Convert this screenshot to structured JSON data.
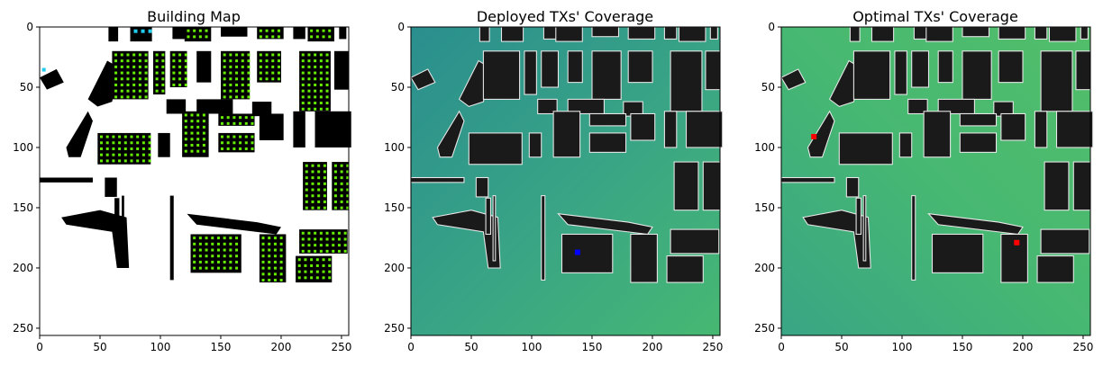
{
  "chart_data": [
    {
      "type": "heatmap",
      "title": "Building Map",
      "xlabel": "",
      "ylabel": "",
      "xlim": [
        0,
        256
      ],
      "ylim": [
        256,
        0
      ],
      "xticks": [
        0,
        50,
        100,
        150,
        200,
        250
      ],
      "yticks": [
        0,
        50,
        100,
        150,
        200,
        250
      ],
      "grid": false,
      "background_color": "#ffffff",
      "building_color": "#000000",
      "marker_color": "#66ee00",
      "highlight_color": "#22ccee"
    },
    {
      "type": "heatmap",
      "title": "Deployed TXs' Coverage",
      "xlabel": "",
      "ylabel": "",
      "xlim": [
        0,
        256
      ],
      "ylim": [
        256,
        0
      ],
      "xticks": [
        0,
        50,
        100,
        150,
        200,
        250
      ],
      "yticks": [
        0,
        50,
        100,
        150,
        200,
        250
      ],
      "grid": false,
      "colormap": [
        "#2a8e8e",
        "#3aa585",
        "#47b872"
      ],
      "transmitters": [
        {
          "x": 138,
          "y": 187,
          "color": "#0000ff"
        }
      ]
    },
    {
      "type": "heatmap",
      "title": "Optimal TXs' Coverage",
      "xlabel": "",
      "ylabel": "",
      "xlim": [
        0,
        256
      ],
      "ylim": [
        256,
        0
      ],
      "xticks": [
        0,
        50,
        100,
        150,
        200,
        250
      ],
      "yticks": [
        0,
        50,
        100,
        150,
        200,
        250
      ],
      "grid": false,
      "colormap": [
        "#3aa585",
        "#47b872",
        "#52be6a"
      ],
      "transmitters": [
        {
          "x": 27,
          "y": 91,
          "color": "#ff0000"
        },
        {
          "x": 195,
          "y": 179,
          "color": "#ff0000"
        }
      ]
    }
  ]
}
